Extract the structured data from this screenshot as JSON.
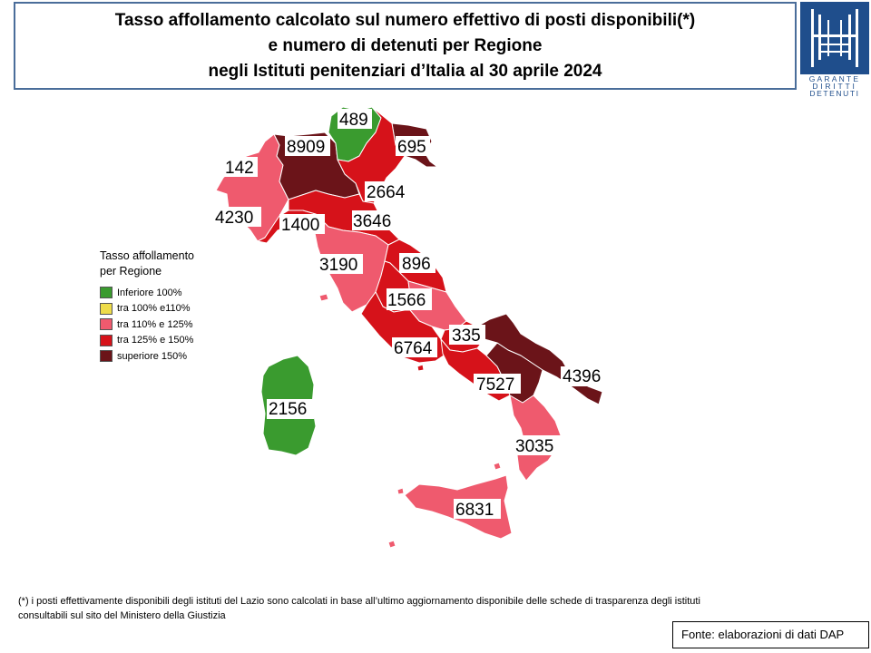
{
  "title": {
    "line1": "Tasso affollamento calcolato sul numero effettivo di posti disponibili(*)",
    "line2": "e numero di detenuti per Regione",
    "line3": "negli Istituti penitenziari d’Italia al 30 aprile 2024"
  },
  "logo": {
    "line1": "GARANTE",
    "line2": "DIRITTI",
    "line3": "DETENUTI",
    "color": "#1f4e8c"
  },
  "legend": {
    "title_line1": "Tasso affollamento",
    "title_line2": "per Regione",
    "items": [
      {
        "label": "Inferiore 100%",
        "color": "#3a9b2f"
      },
      {
        "label": "tra 100% e110%",
        "color": "#eedc4a"
      },
      {
        "label": "tra 110% e 125%",
        "color": "#ef5a6e"
      },
      {
        "label": "tra 125% e 150%",
        "color": "#d6121a"
      },
      {
        "label": "superiore 150%",
        "color": "#6b1419"
      }
    ]
  },
  "regions": [
    {
      "name": "Trentino-Alto Adige",
      "detenuti": "489",
      "class": "Inferiore 100%"
    },
    {
      "name": "Lombardia",
      "detenuti": "8909",
      "class": "superiore 150%"
    },
    {
      "name": "Friuli-Venezia Giulia",
      "detenuti": "695",
      "class": "superiore 150%"
    },
    {
      "name": "Valle d'Aosta",
      "detenuti": "142",
      "class": "tra 110% e 125%"
    },
    {
      "name": "Veneto",
      "detenuti": "2664",
      "class": "tra 125% e 150%"
    },
    {
      "name": "Piemonte",
      "detenuti": "4230",
      "class": "tra 110% e 125%"
    },
    {
      "name": "Liguria",
      "detenuti": "1400",
      "class": "tra 125% e 150%"
    },
    {
      "name": "Emilia-Romagna",
      "detenuti": "3646",
      "class": "tra 125% e 150%"
    },
    {
      "name": "Toscana",
      "detenuti": "3190",
      "class": "tra 110% e 125%"
    },
    {
      "name": "Marche",
      "detenuti": "896",
      "class": "tra 125% e 150%"
    },
    {
      "name": "Umbria",
      "detenuti": "1566",
      "class": "tra 125% e 150%"
    },
    {
      "name": "Molise",
      "detenuti": "335",
      "class": "tra 125% e 150%"
    },
    {
      "name": "Lazio",
      "detenuti": "6764",
      "class": "tra 125% e 150%"
    },
    {
      "name": "Campania",
      "detenuti": "7527",
      "class": "tra 125% e 150%"
    },
    {
      "name": "Puglia",
      "detenuti": "4396",
      "class": "superiore 150%"
    },
    {
      "name": "Sardegna",
      "detenuti": "2156",
      "class": "Inferiore 100%"
    },
    {
      "name": "Calabria",
      "detenuti": "3035",
      "class": "tra 110% e 125%"
    },
    {
      "name": "Sicilia",
      "detenuti": "6831",
      "class": "tra 110% e 125%"
    }
  ],
  "footnote": {
    "line1": "(*) i posti effettivamente disponibili  degli istituti del Lazio sono calcolati in base all’ultimo aggiornamento disponibile  delle schede di trasparenza degli istituti",
    "line2": "consultabili sul sito del Ministero della Giustizia"
  },
  "source": "Fonte: elaborazioni di dati DAP"
}
